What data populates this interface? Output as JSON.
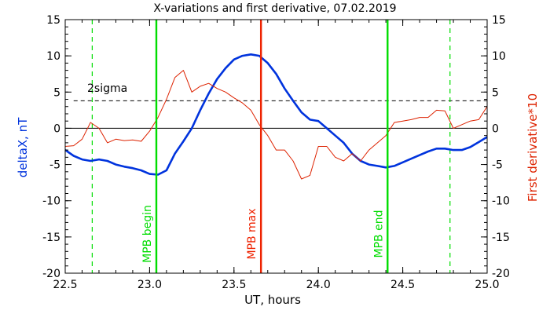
{
  "chart_data": {
    "type": "line",
    "title": "X-variations and first derivative, 07.02.2019",
    "xlabel": "UT, hours",
    "ylabel_left": "deltaX, nT",
    "ylabel_right": "First derivative*10",
    "xlim": [
      22.5,
      25.0
    ],
    "ylim": [
      -20,
      15
    ],
    "xticks": [
      "22.5",
      "23.0",
      "23.5",
      "24.0",
      "24.5",
      "25.0"
    ],
    "yticks": [
      "15",
      "10",
      "5",
      "0",
      "-5",
      "-10",
      "-15",
      "-20"
    ],
    "threshold": {
      "label": "2sigma",
      "value": 3.8
    },
    "sigma_markers": [
      22.66,
      24.78
    ],
    "markers": [
      {
        "label": "MPB begin",
        "x": 23.04,
        "color": "#00dd00"
      },
      {
        "label": "MPB max",
        "x": 23.66,
        "color": "#ee2200"
      },
      {
        "label": "MPB end",
        "x": 24.41,
        "color": "#00dd00"
      }
    ],
    "series": [
      {
        "name": "deltaX",
        "color": "#0033dd",
        "x": [
          22.5,
          22.55,
          22.6,
          22.65,
          22.7,
          22.75,
          22.8,
          22.85,
          22.9,
          22.95,
          23.0,
          23.05,
          23.1,
          23.15,
          23.2,
          23.25,
          23.3,
          23.35,
          23.4,
          23.45,
          23.5,
          23.55,
          23.6,
          23.65,
          23.7,
          23.75,
          23.8,
          23.85,
          23.9,
          23.95,
          24.0,
          24.05,
          24.1,
          24.15,
          24.2,
          24.25,
          24.3,
          24.35,
          24.4,
          24.45,
          24.5,
          24.55,
          24.6,
          24.65,
          24.7,
          24.75,
          24.8,
          24.85,
          24.9,
          24.95,
          25.0
        ],
        "values": [
          -3.0,
          -3.8,
          -4.3,
          -4.5,
          -4.3,
          -4.5,
          -5.0,
          -5.3,
          -5.5,
          -5.8,
          -6.3,
          -6.4,
          -5.8,
          -3.5,
          -1.8,
          0.0,
          2.5,
          4.8,
          6.8,
          8.3,
          9.5,
          10.0,
          10.2,
          10.0,
          9.0,
          7.5,
          5.5,
          3.8,
          2.2,
          1.2,
          1.0,
          0.0,
          -1.0,
          -2.0,
          -3.5,
          -4.5,
          -5.0,
          -5.2,
          -5.4,
          -5.2,
          -4.7,
          -4.2,
          -3.7,
          -3.2,
          -2.8,
          -2.8,
          -3.0,
          -3.0,
          -2.6,
          -1.9,
          -1.2
        ]
      },
      {
        "name": "First derivative*10",
        "color": "#dd2200",
        "x": [
          22.5,
          22.55,
          22.6,
          22.65,
          22.7,
          22.75,
          22.8,
          22.85,
          22.9,
          22.95,
          23.0,
          23.05,
          23.1,
          23.15,
          23.2,
          23.25,
          23.3,
          23.35,
          23.4,
          23.45,
          23.5,
          23.55,
          23.6,
          23.65,
          23.7,
          23.75,
          23.8,
          23.85,
          23.9,
          23.95,
          24.0,
          24.05,
          24.1,
          24.15,
          24.2,
          24.25,
          24.3,
          24.35,
          24.4,
          24.45,
          24.5,
          24.55,
          24.6,
          24.65,
          24.7,
          24.75,
          24.8,
          24.85,
          24.9,
          24.95,
          25.0
        ],
        "values": [
          -2.5,
          -2.4,
          -1.5,
          0.8,
          0.0,
          -2.0,
          -1.5,
          -1.7,
          -1.6,
          -1.8,
          -0.4,
          1.5,
          4.0,
          7.0,
          8.0,
          5.0,
          5.8,
          6.2,
          5.5,
          5.0,
          4.2,
          3.5,
          2.5,
          0.5,
          -1.0,
          -3.0,
          -3.0,
          -4.5,
          -7.0,
          -6.5,
          -2.5,
          -2.5,
          -4.0,
          -4.5,
          -3.5,
          -4.5,
          -3.0,
          -2.0,
          -1.0,
          0.8,
          1.0,
          1.2,
          1.5,
          1.5,
          2.5,
          2.4,
          0.0,
          0.5,
          1.0,
          1.2,
          3.0
        ]
      }
    ]
  }
}
